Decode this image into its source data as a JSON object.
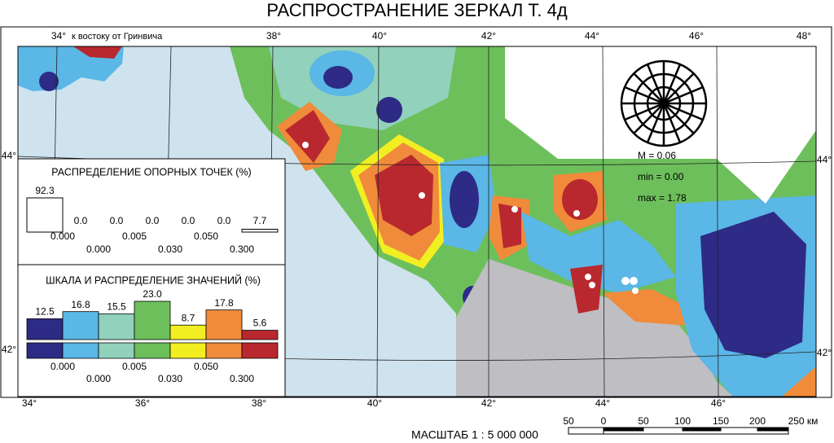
{
  "title": "РАСПРОСТРАНЕНИЕ ЗЕРКАЛ Т. 4д",
  "top_longitudes": [
    "34°",
    "38°",
    "40°",
    "42°",
    "44°",
    "46°",
    "48°"
  ],
  "meridian_note": "к востоку от Гринвича",
  "bottom_longitudes": [
    "34°",
    "36°",
    "38°",
    "40°",
    "42°",
    "44°",
    "46°"
  ],
  "left_latitudes": [
    "44°",
    "42°"
  ],
  "right_latitudes": [
    "44°",
    "42°"
  ],
  "stats": [
    "M = 0.06",
    "min = 0.00",
    "max = 1.78"
  ],
  "points_legend": {
    "title": "РАСПРЕДЕЛЕНИЕ ОПОРНЫХ ТОЧЕК (%)",
    "values": [
      92.3,
      0,
      0,
      0,
      0,
      0,
      7.7
    ],
    "value_labels": [
      "92.3",
      "0.0",
      "0.0",
      "0.0",
      "0.0",
      "0.0",
      "7.7"
    ],
    "thresholds_top": [
      "0.000",
      "0.005",
      "0.050"
    ],
    "thresholds_bottom": [
      "0.000",
      "0.030",
      "0.300"
    ]
  },
  "values_legend": {
    "title": "ШКАЛА И РАСПРЕДЕЛЕНИЕ ЗНАЧЕНИЙ (%)",
    "values": [
      12.5,
      16.8,
      15.5,
      23.0,
      8.7,
      17.8,
      5.6
    ],
    "value_labels": [
      "12.5",
      "16.8",
      "15.5",
      "23.0",
      "8.7",
      "17.8",
      "5.6"
    ],
    "colors": [
      "#2d2b86",
      "#5ab7e6",
      "#92d1bb",
      "#6dbf5b",
      "#f1ee22",
      "#f08b3b",
      "#b8282e"
    ],
    "thresholds_top": [
      "0.000",
      "0.005",
      "0.050"
    ],
    "thresholds_bottom": [
      "0.000",
      "0.030",
      "0.300"
    ]
  },
  "scale": {
    "label": "МАСШТАБ 1 : 5 000 000",
    "ticks": [
      "50",
      "0",
      "50",
      "100",
      "150",
      "200",
      "250 км"
    ]
  }
}
